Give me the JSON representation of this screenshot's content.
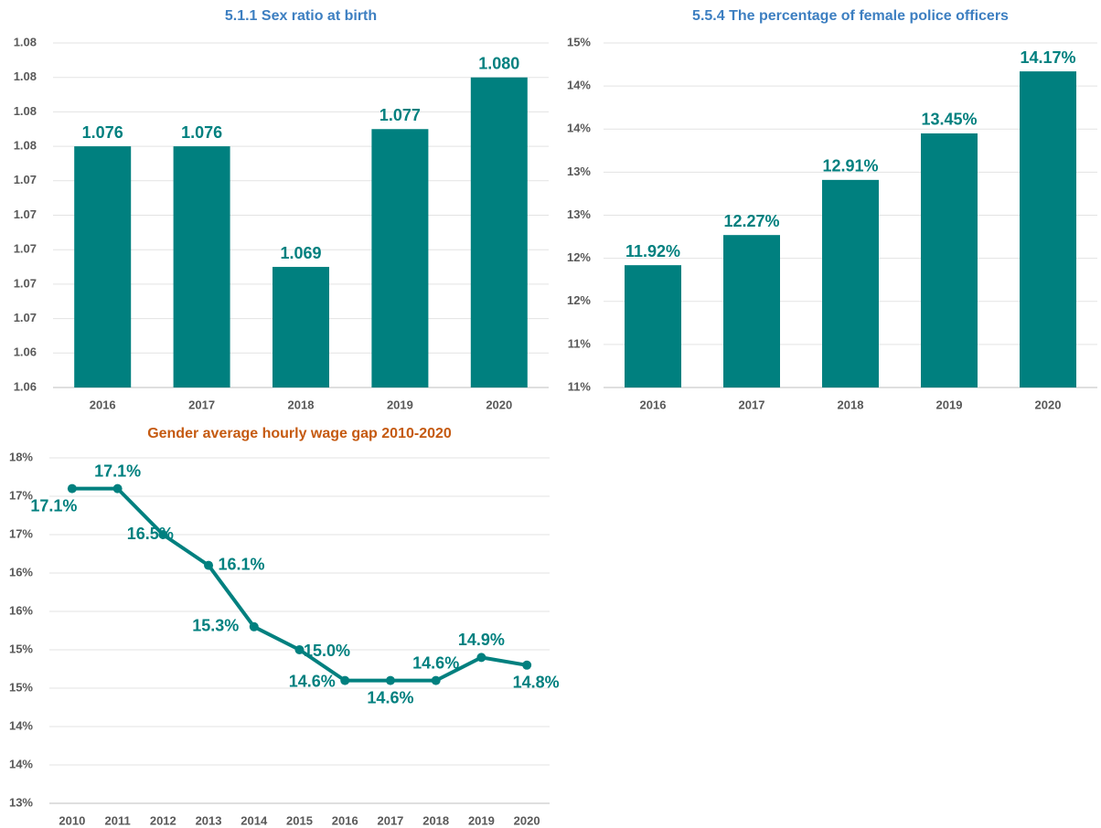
{
  "chart_data": [
    {
      "type": "bar",
      "title": "5.1.1 Sex ratio at birth",
      "title_color": "#3d7fc1",
      "color": "#00807f",
      "categories": [
        "2016",
        "2017",
        "2018",
        "2019",
        "2020"
      ],
      "values": [
        1.076,
        1.076,
        1.069,
        1.077,
        1.08
      ],
      "value_labels": [
        "1.076",
        "1.076",
        "1.069",
        "1.077",
        "1.080"
      ],
      "ylim": [
        1.062,
        1.082
      ],
      "yticks": [
        {
          "value": 1.062,
          "label": "1.06"
        },
        {
          "value": 1.064,
          "label": "1.06"
        },
        {
          "value": 1.066,
          "label": "1.07"
        },
        {
          "value": 1.068,
          "label": "1.07"
        },
        {
          "value": 1.07,
          "label": "1.07"
        },
        {
          "value": 1.072,
          "label": "1.07"
        },
        {
          "value": 1.074,
          "label": "1.07"
        },
        {
          "value": 1.076,
          "label": "1.08"
        },
        {
          "value": 1.078,
          "label": "1.08"
        },
        {
          "value": 1.08,
          "label": "1.08"
        },
        {
          "value": 1.082,
          "label": "1.08"
        }
      ],
      "grid": true
    },
    {
      "type": "bar",
      "title": "5.5.4 The percentage of female police officers",
      "title_color": "#3d7fc1",
      "color": "#00807f",
      "categories": [
        "2016",
        "2017",
        "2018",
        "2019",
        "2020"
      ],
      "values": [
        11.92,
        12.27,
        12.91,
        13.45,
        14.17
      ],
      "value_labels": [
        "11.92%",
        "12.27%",
        "12.91%",
        "13.45%",
        "14.17%"
      ],
      "ylim": [
        10.5,
        14.5
      ],
      "yticks": [
        {
          "value": 10.5,
          "label": "11%"
        },
        {
          "value": 11,
          "label": "11%"
        },
        {
          "value": 11.5,
          "label": "12%"
        },
        {
          "value": 12,
          "label": "12%"
        },
        {
          "value": 12.5,
          "label": "13%"
        },
        {
          "value": 13,
          "label": "13%"
        },
        {
          "value": 13.5,
          "label": "14%"
        },
        {
          "value": 14,
          "label": "14%"
        },
        {
          "value": 14.5,
          "label": "15%"
        }
      ],
      "grid": true
    },
    {
      "type": "line",
      "title": "Gender average hourly wage gap 2010-2020",
      "title_color": "#c55a11",
      "color": "#00807f",
      "categories": [
        "2010",
        "2011",
        "2012",
        "2013",
        "2014",
        "2015",
        "2016",
        "2017",
        "2018",
        "2019",
        "2020"
      ],
      "values": [
        17.1,
        17.1,
        16.5,
        16.1,
        15.3,
        15.0,
        14.6,
        14.6,
        14.6,
        14.9,
        14.8
      ],
      "value_labels": [
        "17.1%",
        "17.1%",
        "16.5%",
        "16.1%",
        "15.3%",
        "15.0%",
        "14.6%",
        "14.6%",
        "14.6%",
        "14.9%",
        "14.8%"
      ],
      "ylim": [
        13,
        17.5
      ],
      "yticks": [
        {
          "value": 13,
          "label": "13%"
        },
        {
          "value": 13.5,
          "label": "14%"
        },
        {
          "value": 14,
          "label": "14%"
        },
        {
          "value": 14.5,
          "label": "15%"
        },
        {
          "value": 15,
          "label": "15%"
        },
        {
          "value": 15.5,
          "label": "16%"
        },
        {
          "value": 16,
          "label": "16%"
        },
        {
          "value": 16.5,
          "label": "17%"
        },
        {
          "value": 17,
          "label": "17%"
        },
        {
          "value": 17.5,
          "label": "18%"
        }
      ],
      "grid": true
    }
  ]
}
